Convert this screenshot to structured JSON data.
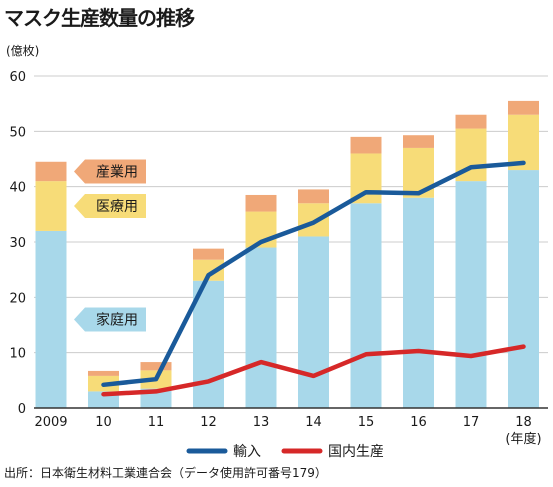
{
  "title": "マスク生産数量の推移",
  "unit_label": "(億枚)",
  "source": "出所：日本衛生材料工業連合会（データ使用許可番号179）",
  "colors": {
    "household": "#a8d8ea",
    "medical": "#f7dc78",
    "industrial": "#f0a878",
    "import_line": "#1a5a9a",
    "domestic_line": "#d62828",
    "axis": "#333333",
    "grid": "#cccccc"
  },
  "chart_data": {
    "type": "bar",
    "categories": [
      "2009",
      "10",
      "11",
      "12",
      "13",
      "14",
      "15",
      "16",
      "17",
      "18"
    ],
    "x_unit_label": "(年度)",
    "ylim": [
      0,
      60
    ],
    "yticks": [
      0,
      10,
      20,
      30,
      40,
      50,
      60
    ],
    "grid": true,
    "legend_position": "bottom-center",
    "stacked_series": [
      {
        "name": "家庭用",
        "values": [
          32,
          3,
          3.5,
          23,
          29,
          31,
          37,
          38,
          41,
          43
        ]
      },
      {
        "name": "医療用",
        "values": [
          9,
          2.8,
          3.3,
          3.8,
          6.5,
          6,
          9,
          9,
          9.5,
          10
        ]
      },
      {
        "name": "産業用",
        "values": [
          3.5,
          0.9,
          1.5,
          2,
          3,
          2.5,
          3,
          2.3,
          2.5,
          2.5
        ]
      }
    ],
    "line_series": [
      {
        "name": "輸入",
        "values": [
          null,
          4.2,
          5.2,
          24,
          30,
          33.5,
          39,
          38.8,
          43.5,
          44.3
        ]
      },
      {
        "name": "国内生産",
        "values": [
          null,
          2.5,
          3,
          4.8,
          8.3,
          5.8,
          9.7,
          10.3,
          9.4,
          11.1
        ]
      }
    ]
  }
}
